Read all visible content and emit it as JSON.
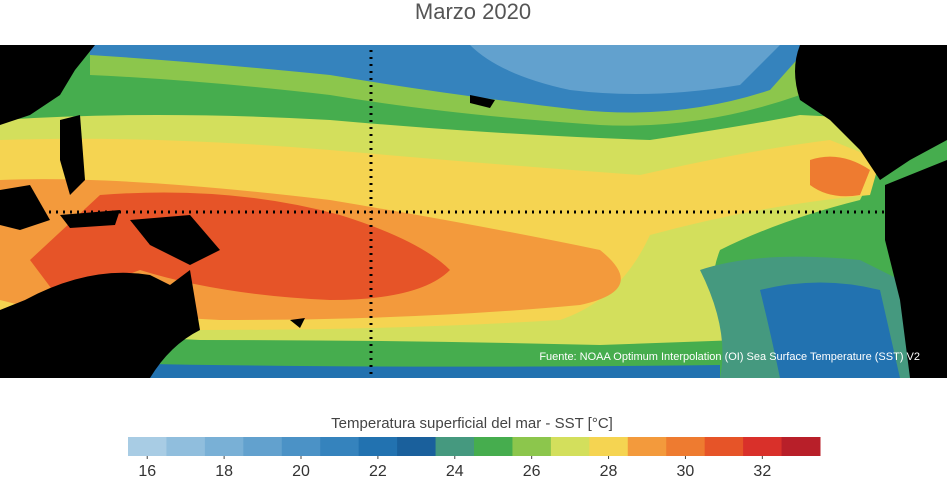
{
  "title": "Marzo 2020",
  "source": "Fuente: NOAA Optimum Interpolation (OI) Sea Surface Temperature (SST) V2",
  "colorbar": {
    "label": "Temperatura superficial del mar - SST  [°C]",
    "lim": [
      15.5,
      33.5
    ],
    "ticks": [
      16,
      18,
      20,
      22,
      24,
      26,
      28,
      30,
      32
    ],
    "colors": [
      "#a8cce4",
      "#90bedd",
      "#79b0d6",
      "#62a1ce",
      "#4b92c6",
      "#3583bd",
      "#2272b0",
      "#1a609c",
      "#45997f",
      "#46ad4e",
      "#8cc64c",
      "#d3df5c",
      "#f5d451",
      "#f39a3c",
      "#ee7b30",
      "#e65428",
      "#d9302a",
      "#b81f29"
    ]
  }
}
